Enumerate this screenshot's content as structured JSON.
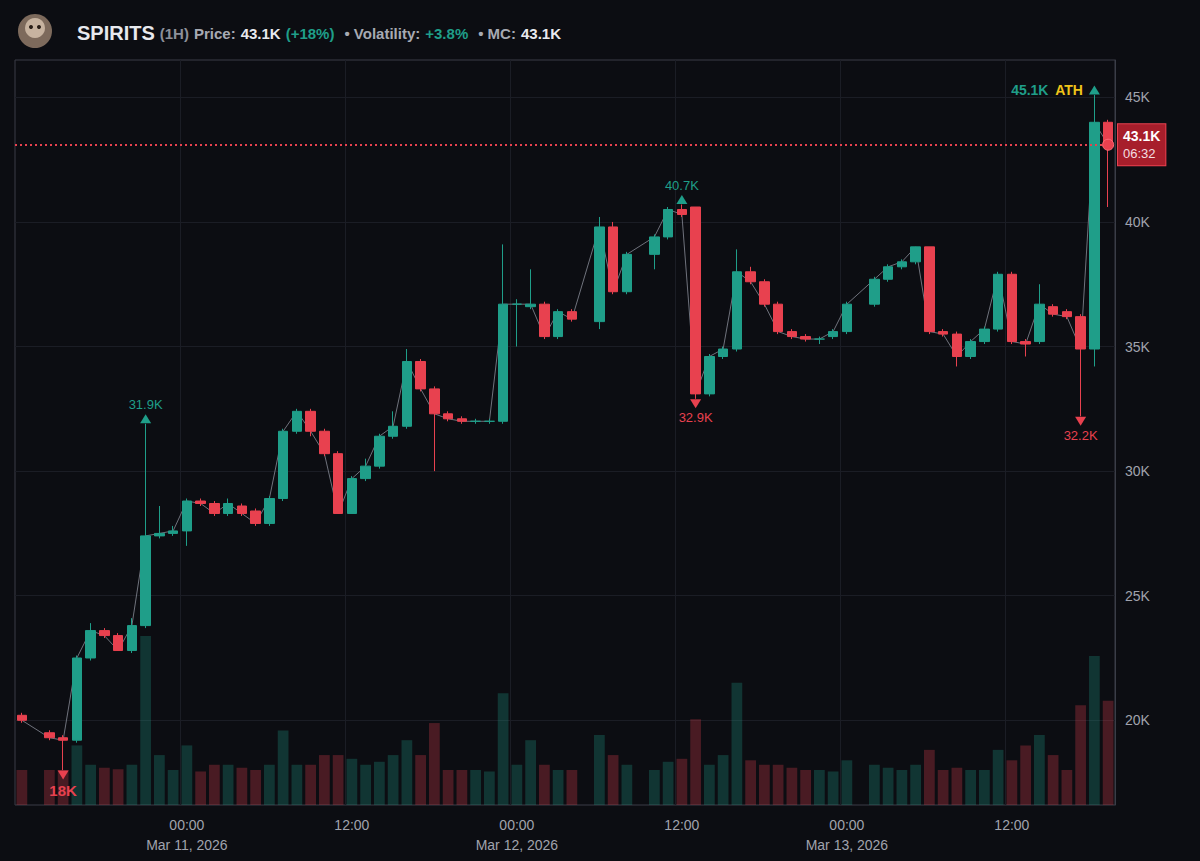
{
  "chart_data": {
    "type": "candlestick",
    "header": {
      "symbol": "SPIRITS",
      "interval": "(1H)",
      "price_label": "Price:",
      "price": "43.1K",
      "change": "(+18%)",
      "volatility_label": "• Volatility:",
      "volatility": "+3.8%",
      "mc_label": "• MC:",
      "mc": "43.1K"
    },
    "categories": [
      null,
      null,
      null,
      null,
      null,
      null,
      null,
      null,
      null,
      null,
      null,
      null,
      "00:00\nMar 11, 2026",
      null,
      null,
      null,
      null,
      null,
      null,
      null,
      null,
      null,
      null,
      null,
      "12:00",
      null,
      null,
      null,
      null,
      null,
      null,
      null,
      null,
      null,
      null,
      null,
      "00:00\nMar 12, 2026",
      null,
      null,
      null,
      null,
      null,
      null,
      null,
      null,
      null,
      null,
      null,
      "12:00",
      null,
      null,
      null,
      null,
      null,
      null,
      null,
      null,
      null,
      null,
      null,
      "00:00\nMar 13, 2026",
      null,
      null,
      null,
      null,
      null,
      null,
      null,
      null,
      null,
      null,
      null,
      "12:00",
      null,
      null,
      null,
      null,
      null,
      null,
      null
    ],
    "series": [
      {
        "type": "candlestick",
        "values": [
          [
            20.2,
            20.3,
            19.9,
            20.0
          ],
          null,
          [
            19.5,
            19.6,
            19.2,
            19.3
          ],
          [
            19.3,
            19.4,
            18.0,
            19.2
          ],
          [
            19.2,
            22.6,
            19.1,
            22.5
          ],
          [
            22.5,
            23.9,
            22.4,
            23.6
          ],
          [
            23.6,
            23.7,
            23.3,
            23.4
          ],
          [
            23.4,
            23.5,
            22.8,
            22.8
          ],
          [
            22.8,
            24.1,
            22.7,
            23.8
          ],
          [
            23.8,
            31.9,
            23.7,
            27.4
          ],
          [
            27.4,
            28.6,
            27.3,
            27.5
          ],
          [
            27.5,
            27.8,
            27.4,
            27.6
          ],
          [
            27.6,
            28.9,
            27.0,
            28.8
          ],
          [
            28.8,
            28.9,
            28.6,
            28.7
          ],
          [
            28.7,
            28.8,
            28.2,
            28.3
          ],
          [
            28.3,
            28.9,
            28.2,
            28.7
          ],
          [
            28.6,
            28.7,
            28.2,
            28.3
          ],
          [
            28.4,
            28.5,
            27.8,
            27.9
          ],
          [
            27.9,
            29.0,
            27.8,
            28.9
          ],
          [
            28.9,
            31.7,
            28.8,
            31.6
          ],
          [
            31.6,
            32.5,
            31.5,
            32.4
          ],
          [
            32.4,
            32.5,
            31.4,
            31.6
          ],
          [
            31.6,
            31.7,
            30.6,
            30.7
          ],
          [
            30.7,
            30.8,
            28.3,
            28.3
          ],
          [
            28.3,
            29.8,
            28.3,
            29.7
          ],
          [
            29.7,
            30.5,
            29.6,
            30.2
          ],
          [
            30.2,
            31.5,
            30.1,
            31.4
          ],
          [
            31.4,
            32.4,
            31.3,
            31.8
          ],
          [
            31.8,
            34.9,
            31.7,
            34.4
          ],
          [
            34.4,
            34.5,
            33.2,
            33.3
          ],
          [
            33.3,
            33.4,
            30.0,
            32.3
          ],
          [
            32.3,
            32.4,
            32.0,
            32.1
          ],
          [
            32.1,
            32.2,
            31.9,
            32.0
          ],
          [
            32.0,
            32.1,
            31.9,
            32.0
          ],
          [
            32.0,
            32.1,
            31.9,
            32.0
          ],
          [
            32.0,
            39.1,
            31.9,
            36.7
          ],
          [
            36.7,
            36.9,
            35.0,
            36.7
          ],
          [
            36.6,
            38.1,
            36.5,
            36.7
          ],
          [
            36.7,
            36.8,
            35.3,
            35.4
          ],
          [
            35.4,
            36.5,
            35.3,
            36.4
          ],
          [
            36.4,
            36.5,
            36.0,
            36.1
          ],
          null,
          [
            36.0,
            40.2,
            35.7,
            39.8
          ],
          [
            39.8,
            40.0,
            37.1,
            37.2
          ],
          [
            37.2,
            38.8,
            37.1,
            38.7
          ],
          null,
          [
            38.7,
            39.5,
            38.1,
            39.4
          ],
          [
            39.4,
            40.6,
            39.3,
            40.5
          ],
          [
            40.5,
            40.7,
            40.2,
            40.3
          ],
          [
            40.6,
            40.6,
            32.9,
            33.1
          ],
          [
            33.1,
            34.7,
            33.0,
            34.6
          ],
          [
            34.6,
            35.0,
            34.5,
            34.9
          ],
          [
            34.9,
            38.9,
            34.8,
            38.0
          ],
          [
            38.0,
            38.2,
            37.5,
            37.6
          ],
          [
            37.6,
            37.7,
            36.6,
            36.7
          ],
          [
            36.7,
            36.8,
            35.5,
            35.6
          ],
          [
            35.6,
            35.7,
            35.3,
            35.4
          ],
          [
            35.4,
            35.5,
            35.2,
            35.3
          ],
          [
            35.3,
            35.4,
            35.1,
            35.3
          ],
          [
            35.4,
            35.7,
            35.3,
            35.6
          ],
          [
            35.6,
            36.8,
            35.5,
            36.7
          ],
          null,
          [
            36.7,
            37.8,
            36.6,
            37.7
          ],
          [
            37.7,
            38.3,
            37.6,
            38.2
          ],
          [
            38.2,
            38.5,
            38.1,
            38.4
          ],
          [
            38.4,
            39.0,
            38.3,
            39.0
          ],
          [
            39.0,
            39.0,
            35.5,
            35.6
          ],
          [
            35.6,
            35.7,
            35.4,
            35.5
          ],
          [
            35.5,
            35.6,
            34.2,
            34.6
          ],
          [
            34.6,
            35.3,
            34.5,
            35.2
          ],
          [
            35.2,
            35.8,
            35.1,
            35.7
          ],
          [
            35.7,
            38.0,
            35.6,
            37.9
          ],
          [
            37.9,
            38.0,
            35.1,
            35.2
          ],
          [
            35.2,
            35.3,
            34.6,
            35.1
          ],
          [
            35.2,
            37.5,
            35.1,
            36.7
          ],
          [
            36.6,
            36.7,
            36.2,
            36.3
          ],
          [
            36.4,
            36.5,
            36.1,
            36.2
          ],
          [
            36.2,
            36.3,
            32.2,
            34.9
          ],
          [
            34.9,
            45.1,
            34.2,
            44.0
          ],
          [
            44.0,
            44.1,
            40.6,
            43.1
          ]
        ]
      },
      {
        "type": "bar",
        "axis": "y2",
        "values": [
          4.7,
          null,
          4.7,
          4.7,
          8,
          5.4,
          5,
          4.8,
          5.4,
          22.7,
          6.7,
          4.7,
          8,
          4.5,
          5.4,
          5.4,
          5,
          4.7,
          5.4,
          10,
          5.4,
          5.4,
          6.7,
          6.7,
          6.2,
          5.4,
          5.8,
          6.7,
          8.7,
          6.7,
          11,
          4.7,
          4.7,
          4.7,
          4.5,
          15,
          5.4,
          8.7,
          5.4,
          4.7,
          4.7,
          null,
          9.4,
          6.7,
          5.4,
          null,
          4.7,
          5.8,
          6.2,
          11.5,
          5.4,
          6.7,
          16.4,
          6,
          5.4,
          5.4,
          5,
          4.7,
          4.7,
          4.5,
          6,
          null,
          5.4,
          5,
          4.7,
          5.4,
          7.4,
          4.7,
          5,
          4.7,
          4.7,
          7.4,
          6,
          8,
          9.4,
          6.7,
          4.7,
          13.4,
          20,
          14
        ]
      }
    ],
    "ylim": [
      16.6,
      46.5
    ],
    "yticks": [
      {
        "value": 20,
        "label": "20K"
      },
      {
        "value": 25,
        "label": "25K"
      },
      {
        "value": 30,
        "label": "30K"
      },
      {
        "value": 35,
        "label": "35K"
      },
      {
        "value": 40,
        "label": "40K"
      },
      {
        "value": 45,
        "label": "45K"
      }
    ],
    "y2lim": [
      0,
      100
    ],
    "grid": true,
    "annotations": [
      {
        "kind": "high",
        "value": 45.1,
        "label": "45.1K",
        "tag": "ATH"
      },
      {
        "kind": "high",
        "value": 40.7,
        "label": "40.7K"
      },
      {
        "kind": "high",
        "value": 31.9,
        "label": "31.9K"
      },
      {
        "kind": "low",
        "value": 32.9,
        "label": "32.9K"
      },
      {
        "kind": "low",
        "value": 32.2,
        "label": "32.2K"
      },
      {
        "kind": "low",
        "value": 18,
        "label": "18K"
      }
    ],
    "price_tag": {
      "value": 43.1,
      "label": "43.1K",
      "countdown": "06:32"
    }
  }
}
